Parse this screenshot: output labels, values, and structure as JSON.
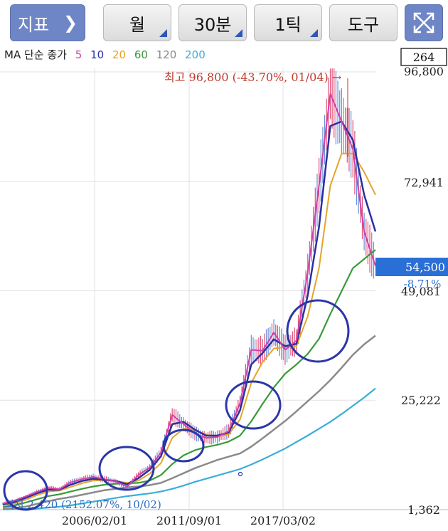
{
  "toolbar": {
    "indicator_label": "지표",
    "period_label": "월",
    "interval_label": "30분",
    "tick_label": "1틱",
    "tools_label": "도구"
  },
  "legend": {
    "prefix": "MA 단순 종가",
    "periods": [
      {
        "label": "5",
        "color": "#d23fa8"
      },
      {
        "label": "10",
        "color": "#2b2fa3"
      },
      {
        "label": "20",
        "color": "#e3a52a"
      },
      {
        "label": "60",
        "color": "#3a9a3a"
      },
      {
        "label": "120",
        "color": "#8a8a8a"
      },
      {
        "label": "200",
        "color": "#3aaed8"
      }
    ]
  },
  "right_box_value": "264",
  "y_labels": [
    "96,800",
    "72,941",
    "49,081",
    "25,222",
    "1,362"
  ],
  "x_labels": [
    "2006/02/01",
    "2011/09/01",
    "2017/03/02"
  ],
  "high_annotation": "최고 96,800 (-43.70%, 01/04) →",
  "low_annotation": "최저 2,420 (2152.07%, 10/02)",
  "current_price": "54,500",
  "current_change": "-8.71%",
  "colors": {
    "accent": "#2a6fd6",
    "high": "#c0392b",
    "low": "#2b6cc4",
    "circle": "#2b36a8"
  },
  "chart_data": {
    "type": "line",
    "ylim": [
      1362,
      96800
    ],
    "x_ticks": [
      "2006/02/01",
      "2011/09/01",
      "2017/03/02"
    ],
    "series": [
      {
        "name": "5",
        "values": [
          2700,
          3300,
          4200,
          5200,
          6100,
          5800,
          7300,
          8000,
          8500,
          8000,
          7500,
          6400,
          8900,
          10500,
          13800,
          22000,
          20000,
          18000,
          17000,
          17200,
          18500,
          24600,
          36200,
          36000,
          40000,
          36200,
          38200,
          53000,
          72000,
          92000,
          86000,
          80000,
          62000,
          54500
        ]
      },
      {
        "name": "10",
        "values": [
          2500,
          3000,
          3900,
          4900,
          5700,
          5700,
          6800,
          7600,
          8100,
          7900,
          7600,
          6900,
          8200,
          10000,
          13000,
          20000,
          20500,
          18800,
          17500,
          17500,
          18200,
          23000,
          33000,
          35500,
          38500,
          37000,
          37500,
          48000,
          63000,
          85000,
          86000,
          82000,
          70000,
          62000
        ]
      },
      {
        "name": "20",
        "values": [
          2300,
          2700,
          3500,
          4500,
          5300,
          5500,
          6300,
          7100,
          7700,
          7800,
          7600,
          7200,
          7700,
          9200,
          11500,
          17000,
          19000,
          18700,
          17700,
          17300,
          17800,
          21000,
          29000,
          33500,
          36500,
          36800,
          37000,
          43500,
          54000,
          72000,
          79000,
          79000,
          75000,
          70000
        ]
      },
      {
        "name": "60",
        "values": [
          1900,
          2300,
          2900,
          3600,
          4300,
          4700,
          5300,
          5900,
          6400,
          6800,
          7000,
          7100,
          7200,
          7700,
          8900,
          11300,
          13200,
          14300,
          15000,
          15500,
          16200,
          17500,
          20600,
          24400,
          28000,
          31000,
          33000,
          35300,
          38600,
          44000,
          49000,
          54000,
          56000,
          58000
        ]
      },
      {
        "name": "120",
        "values": [
          1500,
          1700,
          2000,
          2600,
          3200,
          3700,
          4100,
          4600,
          5100,
          5600,
          5900,
          6200,
          6400,
          6700,
          7200,
          8200,
          9300,
          10400,
          11300,
          12200,
          12900,
          13600,
          15100,
          16900,
          18800,
          20700,
          22800,
          25000,
          27200,
          29600,
          32300,
          35100,
          37400,
          39300
        ]
      },
      {
        "name": "200",
        "values": [
          1400,
          1450,
          1500,
          1600,
          1800,
          2000,
          2300,
          2700,
          3100,
          3500,
          3900,
          4300,
          4600,
          4900,
          5300,
          5900,
          6600,
          7400,
          8100,
          8800,
          9500,
          10200,
          11200,
          12300,
          13500,
          14700,
          16100,
          17500,
          19000,
          20500,
          22200,
          24000,
          25800,
          27800
        ]
      }
    ],
    "high_marker": {
      "value": 96800,
      "label": "최고 96,800 (-43.70%, 01/04)"
    },
    "low_marker": {
      "value": 2420,
      "label": "최저 2,420 (2152.07%, 10/02)"
    },
    "last_value": 54500
  }
}
